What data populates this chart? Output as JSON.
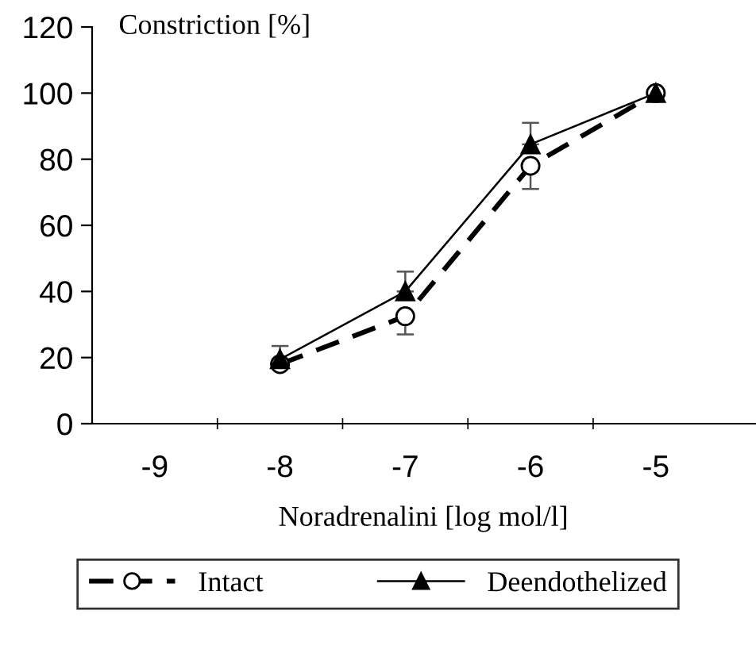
{
  "chart_data": {
    "type": "line",
    "ylabel": "Constriction [%]",
    "xlabel": "Noradrenalini [log mol/l]",
    "categories": [
      "-9",
      "-8",
      "-7",
      "-6",
      "-5"
    ],
    "series": [
      {
        "name": "Intact",
        "color": "#000000",
        "marker": "circle",
        "line_style": "dashed",
        "values": [
          null,
          18,
          32.5,
          78,
          100
        ],
        "errors": [
          null,
          null,
          [
            27,
            32.5
          ],
          [
            71,
            78
          ],
          null
        ]
      },
      {
        "name": "Deendothelized",
        "color": "#000000",
        "marker": "triangle",
        "line_style": "solid",
        "values": [
          null,
          19.5,
          40,
          84.5,
          100
        ],
        "errors": [
          null,
          [
            19.5,
            23.5
          ],
          [
            40,
            46
          ],
          [
            84.5,
            91
          ],
          null
        ]
      }
    ],
    "ylim": [
      0,
      120
    ],
    "yticks": [
      0,
      20,
      40,
      60,
      80,
      100,
      120
    ],
    "grid": false,
    "legend": "bottom"
  }
}
